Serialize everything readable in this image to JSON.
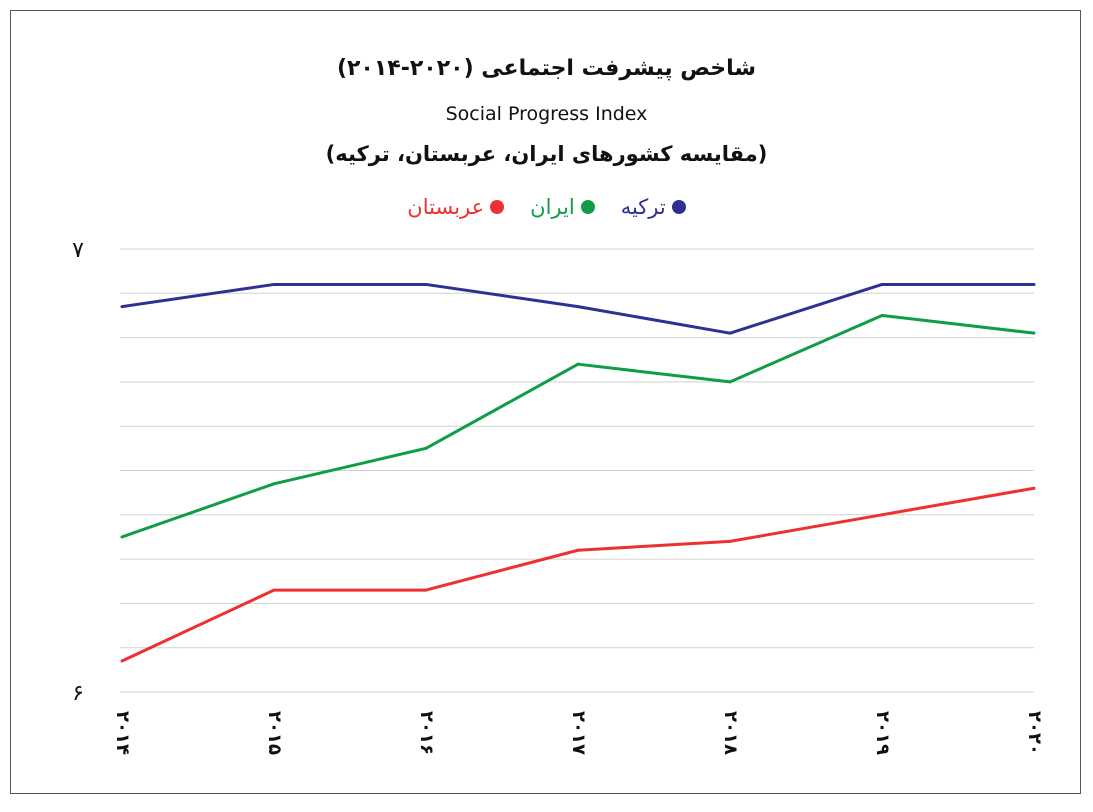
{
  "chart_data": {
    "type": "line",
    "title": "شاخص پیشرفت اجتماعی (۲۰۲۰-۲۰۱۴)",
    "subtitle": "Social Progress Index",
    "subtitle2": "(مقایسه کشورهای ایران، عربستان، ترکیه)",
    "categories": [
      "۲۰۱۴",
      "۲۰۱۵",
      "۲۰۱۶",
      "۲۰۱۷",
      "۲۰۱۸",
      "۲۰۱۹",
      "۲۰۲۰"
    ],
    "ylim": [
      6,
      7
    ],
    "ytick_labels": [
      {
        "value": 7,
        "label": "۷"
      },
      {
        "value": 6,
        "label": "۶"
      }
    ],
    "grid": true,
    "legend_position": "top-center",
    "series": [
      {
        "name": "ترکیه",
        "color": "#2e3192",
        "values": [
          6.87,
          6.92,
          6.92,
          6.87,
          6.81,
          6.92,
          6.92
        ]
      },
      {
        "name": "ایران",
        "color": "#0f9d48",
        "values": [
          6.35,
          6.47,
          6.55,
          6.74,
          6.7,
          6.85,
          6.81
        ]
      },
      {
        "name": "عربستان",
        "color": "#ee3130",
        "values": [
          6.07,
          6.23,
          6.23,
          6.32,
          6.34,
          6.4,
          6.46
        ]
      }
    ]
  }
}
